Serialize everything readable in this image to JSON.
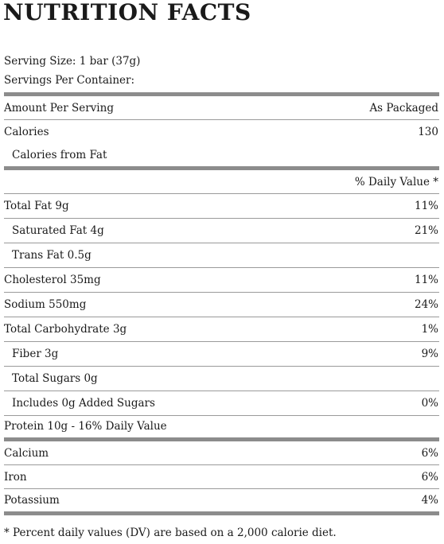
{
  "title": "NUTRITION FACTS",
  "serving_size": "Serving Size: 1 bar (37g)",
  "servings_per_container": "Servings Per Container:",
  "amount_header": {
    "left": "Amount Per Serving",
    "right": "As Packaged"
  },
  "calories": {
    "label": "Calories",
    "value": "130"
  },
  "calories_from_fat": {
    "label": "Calories from Fat",
    "value": ""
  },
  "daily_value_header": "% Daily Value *",
  "nutrients": [
    {
      "label": "Total Fat 9g",
      "dv": "11%"
    },
    {
      "label": "Saturated Fat 4g",
      "dv": "21%"
    },
    {
      "label": "Trans Fat 0.5g",
      "dv": ""
    },
    {
      "label": "Cholesterol 35mg",
      "dv": "11%"
    },
    {
      "label": "Sodium 550mg",
      "dv": "24%"
    },
    {
      "label": "Total Carbohydrate 3g",
      "dv": "1%"
    },
    {
      "label": "Fiber 3g",
      "dv": "9%"
    },
    {
      "label": "Total Sugars 0g",
      "dv": ""
    },
    {
      "label": "Includes 0g Added Sugars",
      "dv": "0%"
    }
  ],
  "protein": "Protein 10g - 16% Daily Value",
  "minerals": [
    {
      "label": "Calcium",
      "dv": "6%"
    },
    {
      "label": "Iron",
      "dv": "6%"
    },
    {
      "label": "Potassium",
      "dv": "4%"
    }
  ],
  "footnote": "* Percent daily values (DV) are based on a 2,000 calorie diet."
}
